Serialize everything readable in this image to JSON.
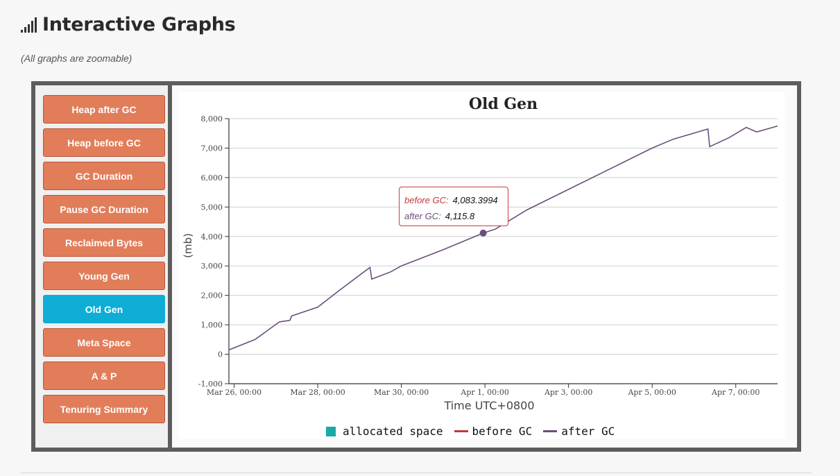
{
  "header": {
    "title": "Interactive Graphs",
    "subtitle": "(All graphs are zoomable)"
  },
  "sidebar": {
    "buttons": [
      {
        "label": "Heap after GC",
        "active": false
      },
      {
        "label": "Heap before GC",
        "active": false
      },
      {
        "label": "GC Duration",
        "active": false
      },
      {
        "label": "Pause GC Duration",
        "active": false
      },
      {
        "label": "Reclaimed Bytes",
        "active": false
      },
      {
        "label": "Young Gen",
        "active": false
      },
      {
        "label": "Old Gen",
        "active": true
      },
      {
        "label": "Meta Space",
        "active": false
      },
      {
        "label": "A & P",
        "active": false
      },
      {
        "label": "Tenuring Summary",
        "active": false
      }
    ]
  },
  "tooltip": {
    "before_label": "before GC:",
    "before_value": "4,083.3994",
    "after_label": "after GC:",
    "after_value": "4,115.8"
  },
  "legend": {
    "allocated": "allocated space",
    "before": "before GC",
    "after": "after GC"
  },
  "colors": {
    "accent_active": "#0eadd6",
    "button": "#e27d5a",
    "before_gc": "#c0393b",
    "after_gc": "#6b4e7b",
    "allocated": "#17aba3"
  },
  "chart_data": {
    "type": "line",
    "title": "Old Gen",
    "xlabel": "Time UTC+0800",
    "ylabel": "(mb)",
    "ylim": [
      -1000,
      8000
    ],
    "yticks": [
      -1000,
      0,
      1000,
      2000,
      3000,
      4000,
      5000,
      6000,
      7000,
      8000
    ],
    "ytick_labels": [
      "-1,000",
      "0",
      "1,000",
      "2,000",
      "3,000",
      "4,000",
      "5,000",
      "6,000",
      "7,000",
      "8,000"
    ],
    "xlim": [
      "2024-03-25T21:00",
      "2024-04-08T00:00"
    ],
    "xticks": [
      "2024-03-26T00:00",
      "2024-03-28T00:00",
      "2024-03-30T00:00",
      "2024-04-01T00:00",
      "2024-04-03T00:00",
      "2024-04-05T00:00",
      "2024-04-07T00:00"
    ],
    "xtick_labels": [
      "Mar 26, 00:00",
      "Mar 28, 00:00",
      "Mar 30, 00:00",
      "Apr 1, 00:00",
      "Apr 3, 00:00",
      "Apr 5, 00:00",
      "Apr 7, 00:00"
    ],
    "grid": true,
    "legend_position": "bottom",
    "series": [
      {
        "name": "after GC",
        "x": [
          "2024-03-25T21:00",
          "2024-03-26T12:00",
          "2024-03-27T02:00",
          "2024-03-27T08:00",
          "2024-03-27T09:00",
          "2024-03-28T00:00",
          "2024-03-28T12:00",
          "2024-03-29T06:00",
          "2024-03-29T07:00",
          "2024-03-29T18:00",
          "2024-03-30T00:00",
          "2024-03-31T00:00",
          "2024-03-31T23:00",
          "2024-04-01T06:00",
          "2024-04-02T00:00",
          "2024-04-03T00:00",
          "2024-04-04T00:00",
          "2024-04-05T00:00",
          "2024-04-05T12:00",
          "2024-04-06T08:00",
          "2024-04-06T09:00",
          "2024-04-06T20:00",
          "2024-04-07T06:00",
          "2024-04-07T12:00",
          "2024-04-08T00:00"
        ],
        "values": [
          150,
          500,
          1100,
          1150,
          1300,
          1600,
          2150,
          2950,
          2550,
          2800,
          3000,
          3550,
          4115.8,
          4250,
          4900,
          5600,
          6300,
          7000,
          7300,
          7650,
          7050,
          7350,
          7700,
          7550,
          7750
        ]
      },
      {
        "name": "before GC",
        "x": [
          "2024-03-31T23:00"
        ],
        "values": [
          4083.3994
        ]
      }
    ],
    "highlight": {
      "x": "2024-03-31T23:00",
      "y": 4115.8
    }
  }
}
